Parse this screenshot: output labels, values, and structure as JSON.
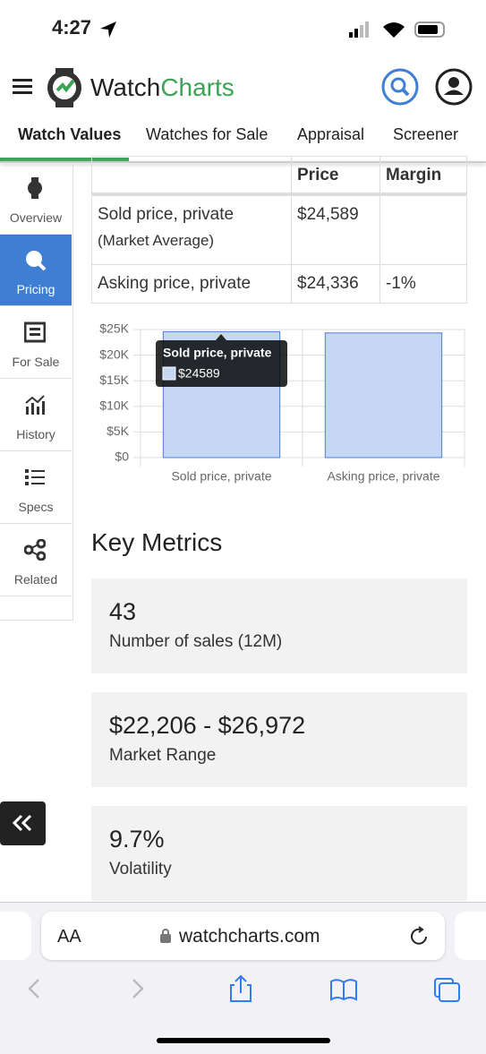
{
  "status_bar": {
    "time": "4:27"
  },
  "header": {
    "brand_watch": "Watch",
    "brand_charts": "Charts"
  },
  "tabs": [
    "Watch Values",
    "Watches for Sale",
    "Appraisal",
    "Screener"
  ],
  "sidebar": [
    "Overview",
    "Pricing",
    "For Sale",
    "History",
    "Specs",
    "Related"
  ],
  "table": {
    "columns": {
      "price": "Price",
      "margin": "Margin"
    },
    "rows": [
      {
        "label": "Sold price, private",
        "sublabel": "(Market Average)",
        "price": "$24,589"
      },
      {
        "label": "Asking price, private",
        "price": "$24,336",
        "margin": "-1%"
      }
    ]
  },
  "chart_data": {
    "type": "bar",
    "categories": [
      "Sold price, private",
      "Asking price, private"
    ],
    "values": [
      24589,
      24336
    ],
    "color": "#c6d7f3",
    "stroke": "#4a7fd8",
    "ylim": [
      0,
      25000
    ],
    "yticks": [
      {
        "value": 0,
        "label": "$0"
      },
      {
        "value": 5000,
        "label": "$5K"
      },
      {
        "value": 10000,
        "label": "$10K"
      },
      {
        "value": 15000,
        "label": "$15K"
      },
      {
        "value": 20000,
        "label": "$20K"
      },
      {
        "value": 25000,
        "label": "$25K"
      }
    ],
    "grid": true,
    "tooltip": {
      "title": "Sold price, private",
      "label": "$24589"
    }
  },
  "key_metrics": {
    "title": "Key Metrics",
    "cards": [
      {
        "value": "43",
        "label": "Number of sales (12M)"
      },
      {
        "value": "$22,206 - $26,972",
        "label": "Market Range"
      },
      {
        "value": "9.7%",
        "label": "Volatility"
      }
    ]
  },
  "browser": {
    "text_size": "AA",
    "url": "watchcharts.com"
  }
}
